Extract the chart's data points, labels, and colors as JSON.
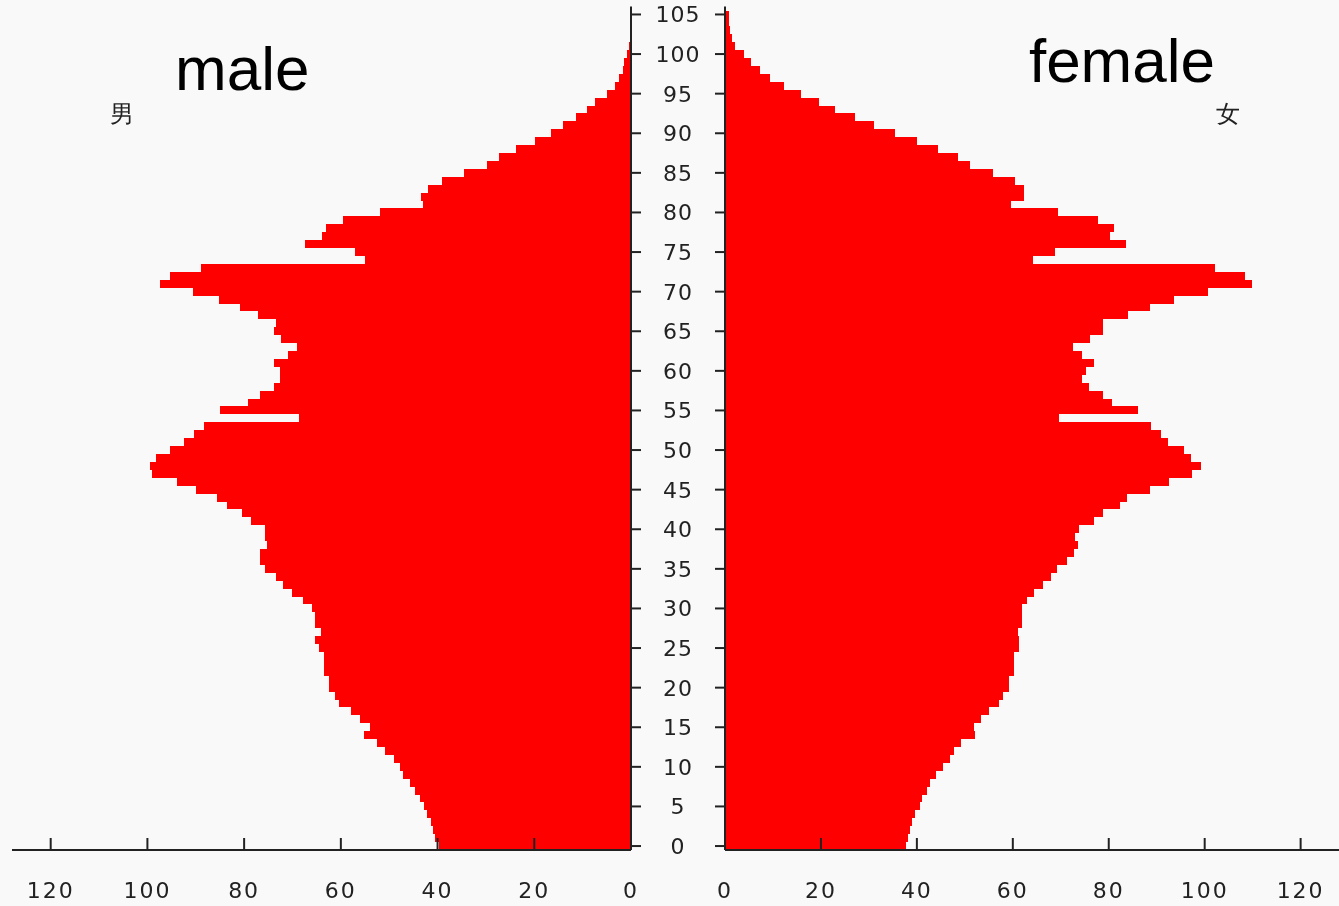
{
  "chart_data": [
    {
      "type": "bar",
      "orientation": "horizontal",
      "title": "male",
      "annotations": [
        "男"
      ],
      "tick_labels": "x",
      "color": "#ff0000",
      "categories": [
        "105",
        null,
        null,
        null,
        null,
        "100",
        null,
        null,
        null,
        null,
        "95",
        null,
        null,
        null,
        null,
        "90",
        null,
        null,
        null,
        null,
        "85",
        null,
        null,
        null,
        null,
        "80",
        null,
        null,
        null,
        null,
        "75",
        null,
        null,
        null,
        null,
        "70",
        null,
        null,
        null,
        null,
        "65",
        null,
        null,
        null,
        null,
        "60",
        null,
        null,
        null,
        null,
        "55",
        null,
        null,
        null,
        null,
        "50",
        null,
        null,
        null,
        null,
        "45",
        null,
        null,
        null,
        null,
        "40",
        null,
        null,
        null,
        null,
        "35",
        null,
        null,
        null,
        null,
        "30",
        null,
        null,
        null,
        null,
        "25",
        null,
        null,
        null,
        null,
        "20",
        null,
        null,
        null,
        null,
        "15",
        null,
        null,
        null,
        null,
        "10",
        null,
        null,
        null,
        null,
        "5",
        null,
        null,
        null,
        null,
        "0"
      ],
      "values": [
        0,
        0,
        0,
        0,
        0.4,
        0.8,
        1.4,
        1.7,
        2.5,
        3.3,
        5,
        7.5,
        9.2,
        11.3,
        14,
        16.5,
        19.8,
        23.8,
        27.3,
        29.8,
        34.5,
        39,
        42,
        43.5,
        43,
        52,
        59.6,
        63,
        64,
        67.5,
        57,
        55,
        89,
        95.4,
        97.4,
        90.5,
        85.1,
        80.9,
        77.2,
        73.5,
        73.8,
        72.3,
        69,
        70.9,
        73.8,
        72.6,
        72.6,
        73.8,
        76.7,
        79.2,
        84.9,
        68.6,
        88.3,
        90.3,
        92.4,
        95.3,
        98.3,
        99.4,
        99,
        93.8,
        89.9,
        85.6,
        83.5,
        80.4,
        78.5,
        75.7,
        75.6,
        75.2,
        76.7,
        76.7,
        75.6,
        73.5,
        71.9,
        70.1,
        67.8,
        66,
        65.3,
        65.3,
        64.1,
        65.3,
        64.6,
        63.5,
        63.5,
        63.5,
        62.4,
        62.4,
        61.2,
        60.3,
        57.8,
        56.1,
        54,
        55.3,
        52.5,
        50.8,
        49,
        47.8,
        47.1,
        45.8,
        44.6,
        43.7,
        42.9,
        42.1,
        41.4,
        41,
        40.5,
        39.8
      ],
      "xlim": [
        128,
        0
      ],
      "xticks": [
        0,
        20,
        40,
        60,
        80,
        100,
        120
      ]
    },
    {
      "type": "bar",
      "orientation": "horizontal",
      "title": "female",
      "annotations": [
        "女"
      ],
      "color": "#ff0000",
      "categories": [
        "105",
        null,
        null,
        null,
        null,
        "100",
        null,
        null,
        null,
        null,
        "95",
        null,
        null,
        null,
        null,
        "90",
        null,
        null,
        null,
        null,
        "85",
        null,
        null,
        null,
        null,
        "80",
        null,
        null,
        null,
        null,
        "75",
        null,
        null,
        null,
        null,
        "70",
        null,
        null,
        null,
        null,
        "65",
        null,
        null,
        null,
        null,
        "60",
        null,
        null,
        null,
        null,
        "55",
        null,
        null,
        null,
        null,
        "50",
        null,
        null,
        null,
        null,
        "45",
        null,
        null,
        null,
        null,
        "40",
        null,
        null,
        null,
        null,
        "35",
        null,
        null,
        null,
        null,
        "30",
        null,
        null,
        null,
        null,
        "25",
        null,
        null,
        null,
        null,
        "20",
        null,
        null,
        null,
        null,
        "15",
        null,
        null,
        null,
        null,
        "10",
        null,
        null,
        null,
        null,
        "5",
        null,
        null,
        null,
        null,
        "0"
      ],
      "values": [
        0.8,
        0.8,
        1.0,
        1.4,
        2.1,
        3.9,
        5.5,
        7.2,
        9.3,
        12.2,
        15.8,
        19.5,
        22.9,
        27,
        31.1,
        35.4,
        40.1,
        44.3,
        48.5,
        51,
        55.9,
        60.4,
        62.4,
        62.4,
        59.6,
        69.5,
        77.8,
        81.1,
        80.3,
        83.5,
        68.8,
        64.2,
        102.2,
        108.4,
        109.8,
        100.6,
        93.5,
        88.6,
        84.1,
        78.7,
        78.7,
        76.1,
        72.5,
        74.5,
        77,
        75.2,
        74.5,
        75.8,
        78.7,
        80.7,
        86,
        69.6,
        88.9,
        90.9,
        92.3,
        95.7,
        97.1,
        99.3,
        97.3,
        92.6,
        88.6,
        83.9,
        82.4,
        78.7,
        77,
        73.7,
        72.9,
        73.6,
        72.7,
        71.2,
        69.2,
        67.9,
        66.3,
        64.5,
        62.9,
        62,
        62,
        62,
        61.1,
        61.3,
        61.3,
        60.3,
        60.3,
        60.3,
        59.2,
        59.2,
        57.9,
        57.1,
        55.1,
        53.3,
        51.9,
        52.1,
        49.3,
        47.7,
        46.9,
        45.4,
        43.9,
        42.8,
        42.2,
        41.1,
        40.6,
        39.6,
        39,
        38.6,
        38.1,
        37.8
      ],
      "xlim": [
        0,
        128
      ],
      "xticks": [
        0,
        20,
        40,
        60,
        80,
        100,
        120
      ]
    }
  ]
}
